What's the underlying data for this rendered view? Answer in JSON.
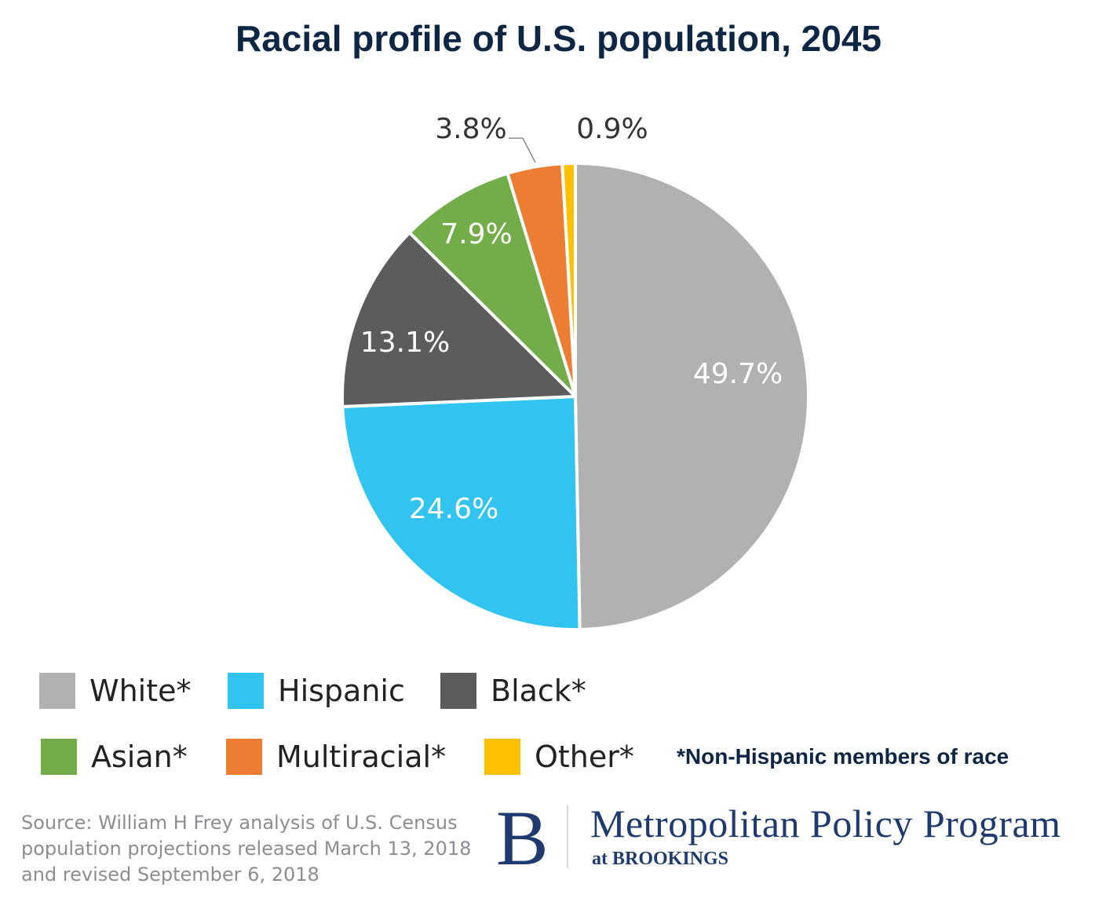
{
  "chart_data": {
    "type": "pie",
    "title": "Racial profile of U.S. population, 2045",
    "start": "top",
    "direction": "clockwise",
    "slices": [
      {
        "name": "White*",
        "value": 49.7,
        "label": "49.7%",
        "color": "#b1b1b1",
        "label_color": "#ffffff",
        "label_position": "inside"
      },
      {
        "name": "Hispanic",
        "value": 24.6,
        "label": "24.6%",
        "color": "#31c4f0",
        "label_color": "#ffffff",
        "label_position": "inside"
      },
      {
        "name": "Black*",
        "value": 13.1,
        "label": "13.1%",
        "color": "#5c5c5c",
        "label_color": "#ffffff",
        "label_position": "inside"
      },
      {
        "name": "Asian*",
        "value": 7.9,
        "label": "7.9%",
        "color": "#72ad4a",
        "label_color": "#ffffff",
        "label_position": "inside"
      },
      {
        "name": "Multiracial*",
        "value": 3.8,
        "label": "3.8%",
        "color": "#ed7d32",
        "label_color": "#333333",
        "label_position": "outside-leader"
      },
      {
        "name": "Other*",
        "value": 0.9,
        "label": "0.9%",
        "color": "#ffc000",
        "label_color": "#333333",
        "label_position": "outside"
      }
    ],
    "legend": {
      "placement": "bottom",
      "rows": [
        [
          "White*",
          "Hispanic",
          "Black*"
        ],
        [
          "Asian*",
          "Multiracial*",
          "Other*"
        ]
      ]
    }
  },
  "footnote": "*Non-Hispanic members of race",
  "source": {
    "line1": "Source: William H Frey analysis of U.S. Census",
    "line2": "population projections released March 13, 2018",
    "line3": "and revised September 6, 2018"
  },
  "logo": {
    "letter": "B",
    "title": "Metropolitan Policy Program",
    "subtitle": "at BROOKINGS"
  }
}
